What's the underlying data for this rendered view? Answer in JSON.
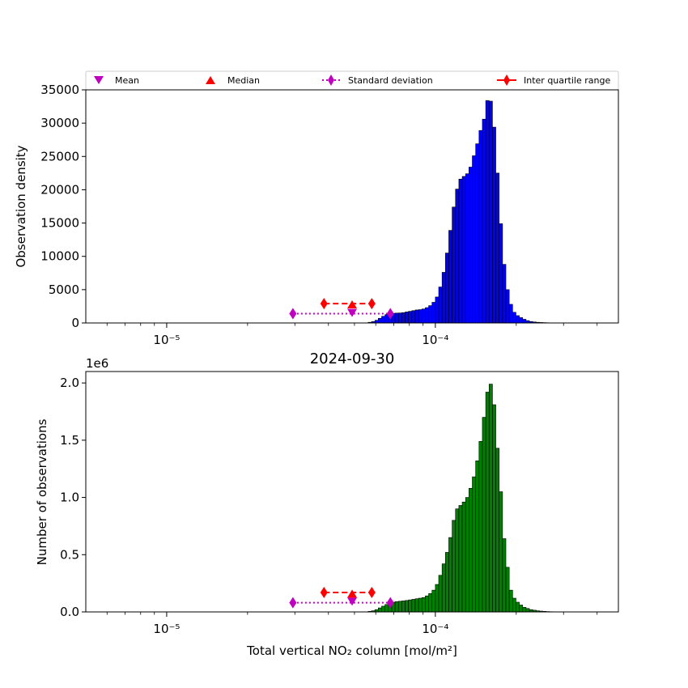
{
  "chart_data": [
    {
      "type": "bar",
      "name": "top-histogram",
      "title": "",
      "xlabel": "",
      "ylabel": "Observation density",
      "xscale": "log",
      "xlim": [
        5e-06,
        0.00048
      ],
      "ylim": [
        0,
        35000
      ],
      "bar_color": "#0000ff",
      "bin_edges_log10": [
        -5.0,
        -3.5
      ],
      "bin_count": 120,
      "x_ticks": [
        {
          "value": 1e-05,
          "label": "10⁻⁵"
        },
        {
          "value": 0.0001,
          "label": "10⁻⁴"
        }
      ],
      "y_ticks": [
        {
          "value": 0,
          "label": "0"
        },
        {
          "value": 5000,
          "label": "5000"
        },
        {
          "value": 10000,
          "label": "10000"
        },
        {
          "value": 15000,
          "label": "15000"
        },
        {
          "value": 20000,
          "label": "20000"
        },
        {
          "value": 25000,
          "label": "25000"
        },
        {
          "value": 30000,
          "label": "30000"
        },
        {
          "value": 35000,
          "label": "35000"
        }
      ],
      "values": [
        0,
        0,
        0,
        0,
        0,
        0,
        0,
        0,
        0,
        0,
        0,
        0,
        0,
        0,
        0,
        0,
        0,
        0,
        0,
        0,
        0,
        0,
        0,
        0,
        0,
        0,
        0,
        0,
        0,
        0,
        0,
        0,
        0,
        0,
        0,
        0,
        0,
        0,
        0,
        0,
        0,
        0,
        0,
        0,
        0,
        0,
        0,
        0,
        0,
        0,
        0,
        0,
        0,
        0,
        0,
        0,
        0,
        0,
        0,
        0,
        100,
        200,
        400,
        700,
        1000,
        1250,
        1400,
        1450,
        1480,
        1500,
        1550,
        1650,
        1750,
        1850,
        1950,
        2000,
        2100,
        2300,
        2600,
        3100,
        3900,
        5400,
        7600,
        10500,
        13900,
        17400,
        20100,
        21600,
        22000,
        22400,
        23400,
        25100,
        26900,
        28900,
        30600,
        33400,
        33300,
        29400,
        22500,
        14900,
        8800,
        5000,
        2800,
        1600,
        1100,
        800,
        550,
        350,
        220,
        150,
        100,
        70,
        50,
        30,
        20,
        10,
        5,
        0,
        0,
        0
      ],
      "markers": {
        "mean": {
          "x": 4.9e-05,
          "y": 1500
        },
        "median": {
          "x": 4.9e-05,
          "y": 2800
        },
        "std": {
          "x": [
            2.95e-05,
            6.8e-05
          ],
          "y": 1400
        },
        "iqr": {
          "x": [
            3.85e-05,
            5.8e-05
          ],
          "y": 2900
        }
      }
    },
    {
      "type": "bar",
      "name": "bottom-histogram",
      "title": "2024-09-30",
      "xlabel": "Total vertical NO₂ column [mol/m²]",
      "ylabel": "Number of observations",
      "y_offset_label": "1e6",
      "xscale": "log",
      "xlim": [
        5e-06,
        0.00048
      ],
      "ylim": [
        0,
        2.1
      ],
      "bar_color": "#008000",
      "bin_edges_log10": [
        -5.0,
        -3.5
      ],
      "bin_count": 120,
      "x_ticks": [
        {
          "value": 1e-05,
          "label": "10⁻⁵"
        },
        {
          "value": 0.0001,
          "label": "10⁻⁴"
        }
      ],
      "y_ticks": [
        {
          "value": 0.0,
          "label": "0.0"
        },
        {
          "value": 0.5,
          "label": "0.5"
        },
        {
          "value": 1.0,
          "label": "1.0"
        },
        {
          "value": 1.5,
          "label": "1.5"
        },
        {
          "value": 2.0,
          "label": "2.0"
        }
      ],
      "values": [
        0,
        0,
        0,
        0,
        0,
        0,
        0,
        0,
        0,
        0,
        0,
        0,
        0,
        0,
        0,
        0,
        0,
        0,
        0,
        0,
        0,
        0,
        0,
        0,
        0,
        0,
        0,
        0,
        0,
        0,
        0,
        0,
        0,
        0,
        0,
        0,
        0,
        0,
        0,
        0,
        0,
        0,
        0,
        0,
        0,
        0,
        0,
        0,
        0,
        0,
        0,
        0,
        0,
        0,
        0,
        0,
        0,
        0,
        0,
        0,
        0.005,
        0.01,
        0.02,
        0.035,
        0.05,
        0.065,
        0.075,
        0.085,
        0.09,
        0.093,
        0.096,
        0.1,
        0.105,
        0.11,
        0.115,
        0.12,
        0.125,
        0.14,
        0.16,
        0.19,
        0.24,
        0.32,
        0.42,
        0.52,
        0.65,
        0.8,
        0.9,
        0.93,
        0.96,
        1.0,
        1.08,
        1.18,
        1.32,
        1.49,
        1.7,
        1.92,
        1.99,
        1.81,
        1.43,
        1.05,
        0.64,
        0.39,
        0.19,
        0.12,
        0.085,
        0.06,
        0.04,
        0.03,
        0.02,
        0.015,
        0.01,
        0.007,
        0.005,
        0.003,
        0.002,
        0.001,
        0.0005,
        0,
        0,
        0
      ],
      "markers": {
        "mean": {
          "x": 4.9e-05,
          "y": 0.09
        },
        "median": {
          "x": 4.9e-05,
          "y": 0.16
        },
        "std": {
          "x": [
            2.95e-05,
            6.8e-05
          ],
          "y": 0.08
        },
        "iqr": {
          "x": [
            3.85e-05,
            5.8e-05
          ],
          "y": 0.17
        }
      }
    }
  ],
  "legend": {
    "placement": "above-top-plot",
    "items": [
      {
        "label": "Mean",
        "marker": "triangle-down",
        "color": "#bf00bf"
      },
      {
        "label": "Median",
        "marker": "triangle-up",
        "color": "#ff0000"
      },
      {
        "label": "Standard deviation",
        "marker": "diamond-dotted",
        "color": "#bf00bf"
      },
      {
        "label": "Inter quartile range",
        "marker": "diamond-dashed",
        "color": "#ff0000"
      }
    ]
  },
  "colors": {
    "mean": "#bf00bf",
    "median": "#ff0000",
    "std": "#bf00bf",
    "iqr": "#ff0000"
  }
}
